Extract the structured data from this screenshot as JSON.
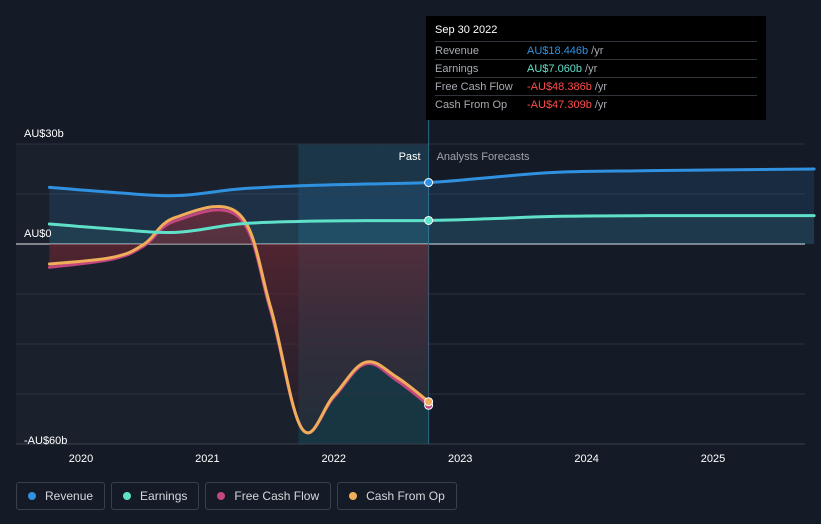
{
  "tooltip": {
    "date": "Sep 30 2022",
    "rows": [
      {
        "label": "Revenue",
        "value": "AU$18.446b",
        "unit": "/yr",
        "color": "#2f91e0"
      },
      {
        "label": "Earnings",
        "value": "AU$7.060b",
        "unit": "/yr",
        "color": "#5fe0c9"
      },
      {
        "label": "Free Cash Flow",
        "value": "-AU$48.386b",
        "unit": "/yr",
        "color": "#ff4b4b"
      },
      {
        "label": "Cash From Op",
        "value": "-AU$47.309b",
        "unit": "/yr",
        "color": "#ff4b4b"
      }
    ]
  },
  "labels": {
    "past": "Past",
    "forecast": "Analysts Forecasts"
  },
  "legend": [
    {
      "label": "Revenue",
      "color": "#2f91e0"
    },
    {
      "label": "Earnings",
      "color": "#5fe0c9"
    },
    {
      "label": "Free Cash Flow",
      "color": "#c2467f"
    },
    {
      "label": "Cash From Op",
      "color": "#f0ad5a"
    }
  ],
  "chart_data": {
    "type": "line",
    "y_unit": "AU$b",
    "ylim": [
      -60,
      30
    ],
    "y_tick_labels": [
      {
        "value": 30,
        "label": "AU$30b"
      },
      {
        "value": 0,
        "label": "AU$0"
      },
      {
        "value": -60,
        "label": "-AU$60b"
      }
    ],
    "xlim": [
      2019.62,
      2025.8
    ],
    "x_ticks": [
      2020,
      2021,
      2022,
      2023,
      2024,
      2025
    ],
    "past_end": 2022.75,
    "series": [
      {
        "name": "Revenue",
        "color": "#2f91e0",
        "points": [
          [
            2019.75,
            17
          ],
          [
            2020.25,
            15.5
          ],
          [
            2020.75,
            14.5
          ],
          [
            2021.25,
            16.5
          ],
          [
            2021.75,
            17.5
          ],
          [
            2022.25,
            18
          ],
          [
            2022.75,
            18.446
          ],
          [
            2023.25,
            20
          ],
          [
            2023.75,
            21.5
          ],
          [
            2024.5,
            22
          ],
          [
            2025.8,
            22.5
          ]
        ]
      },
      {
        "name": "Earnings",
        "color": "#5fe0c9",
        "points": [
          [
            2019.75,
            6
          ],
          [
            2020.25,
            4.5
          ],
          [
            2020.75,
            3.5
          ],
          [
            2021.25,
            6
          ],
          [
            2021.75,
            6.8
          ],
          [
            2022.25,
            7
          ],
          [
            2022.75,
            7.06
          ],
          [
            2023.25,
            7.6
          ],
          [
            2023.75,
            8.3
          ],
          [
            2024.5,
            8.5
          ],
          [
            2025.8,
            8.5
          ]
        ]
      },
      {
        "name": "Free Cash Flow",
        "color": "#c2467f",
        "points": [
          [
            2019.75,
            -7
          ],
          [
            2020.25,
            -4.5
          ],
          [
            2020.5,
            -0.5
          ],
          [
            2020.75,
            7
          ],
          [
            2021.25,
            8
          ],
          [
            2021.5,
            -20
          ],
          [
            2021.75,
            -55.5
          ],
          [
            2022,
            -46
          ],
          [
            2022.25,
            -36
          ],
          [
            2022.5,
            -41
          ],
          [
            2022.75,
            -48.386
          ]
        ]
      },
      {
        "name": "Cash From Op",
        "color": "#f0ad5a",
        "points": [
          [
            2019.75,
            -6
          ],
          [
            2020.25,
            -4
          ],
          [
            2020.5,
            0
          ],
          [
            2020.75,
            8
          ],
          [
            2021.25,
            9
          ],
          [
            2021.5,
            -19
          ],
          [
            2021.75,
            -55.5
          ],
          [
            2022,
            -45.5
          ],
          [
            2022.25,
            -35.5
          ],
          [
            2022.5,
            -40
          ],
          [
            2022.75,
            -47.309
          ]
        ]
      }
    ]
  }
}
